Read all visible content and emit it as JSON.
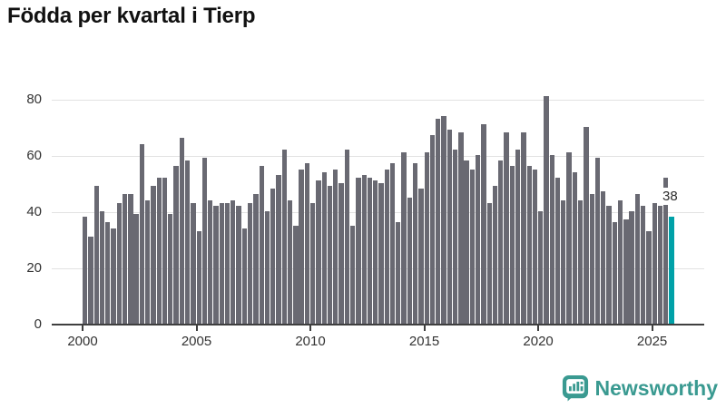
{
  "title": "Födda per kvartal i Tierp",
  "chart_data": {
    "type": "bar",
    "title": "Födda per kvartal i Tierp",
    "xlabel": "",
    "ylabel": "",
    "ylim": [
      0,
      80
    ],
    "grid": true,
    "legend": "none",
    "x_unit": "quarter",
    "start_year": 2000,
    "x_tick_labels": [
      "2000",
      "2005",
      "2010",
      "2015",
      "2020",
      "2025"
    ],
    "y_tick_labels": [
      "0",
      "20",
      "40",
      "60",
      "80"
    ],
    "y_tick_values": [
      0,
      20,
      40,
      60,
      80
    ],
    "series": [
      {
        "name": "Födda per kvartal",
        "values": [
          38,
          31,
          49,
          40,
          36,
          34,
          43,
          46,
          46,
          39,
          64,
          44,
          49,
          52,
          52,
          39,
          56,
          66,
          58,
          43,
          33,
          59,
          44,
          42,
          43,
          43,
          44,
          42,
          34,
          43,
          46,
          56,
          40,
          48,
          53,
          62,
          44,
          35,
          55,
          57,
          43,
          51,
          54,
          49,
          55,
          50,
          62,
          35,
          52,
          53,
          52,
          51,
          50,
          55,
          57,
          36,
          61,
          45,
          57,
          48,
          61,
          67,
          73,
          74,
          69,
          62,
          68,
          58,
          55,
          60,
          71,
          43,
          49,
          58,
          68,
          56,
          62,
          68,
          56,
          55,
          40,
          81,
          60,
          52,
          44,
          61,
          54,
          44,
          70,
          46,
          59,
          47,
          42,
          36,
          44,
          37,
          40,
          46,
          42,
          33,
          43,
          42,
          52,
          38
        ]
      }
    ],
    "highlight": {
      "index": 103,
      "value": 38,
      "label": "38"
    },
    "bar_color": "#696972",
    "highlight_color": "#00a1a8",
    "gridline_color": "#e2e2e2",
    "axis_color": "#3f3f3f",
    "tick_label_color": "#333333"
  },
  "annotation": {
    "last_value_label": "38"
  },
  "branding": {
    "logo_text": "Newsworthy",
    "logo_color": "#3a9a91"
  }
}
